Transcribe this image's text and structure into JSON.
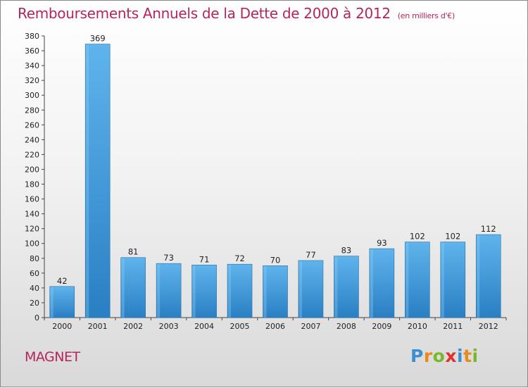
{
  "header": {
    "title": "Remboursements Annuels de la Dette de 2000 à 2012",
    "unit": "(en milliers d'€)"
  },
  "commune": "MAGNET",
  "logo": {
    "text": "Proxiti",
    "colors": [
      "#3d8fd4",
      "#e98a1c",
      "#7ab829",
      "#e0312c",
      "#3d8fd4",
      "#e98a1c",
      "#7ab829"
    ]
  },
  "chart_data": {
    "type": "bar",
    "title": "Remboursements Annuels de la Dette de 2000 à 2012",
    "subtitle": "(en milliers d'€)",
    "xlabel": "",
    "ylabel": "",
    "categories": [
      "2000",
      "2001",
      "2002",
      "2003",
      "2004",
      "2005",
      "2006",
      "2007",
      "2008",
      "2009",
      "2010",
      "2011",
      "2012"
    ],
    "values": [
      42,
      369,
      81,
      73,
      71,
      72,
      70,
      77,
      83,
      93,
      102,
      102,
      112
    ],
    "ylim": [
      0,
      380
    ],
    "ytick_step": 20,
    "grid": false,
    "legend": "none",
    "bar_color_light": "#5fb4ec",
    "bar_color_dark": "#2a7fc4",
    "title_color": "#b4255d"
  }
}
